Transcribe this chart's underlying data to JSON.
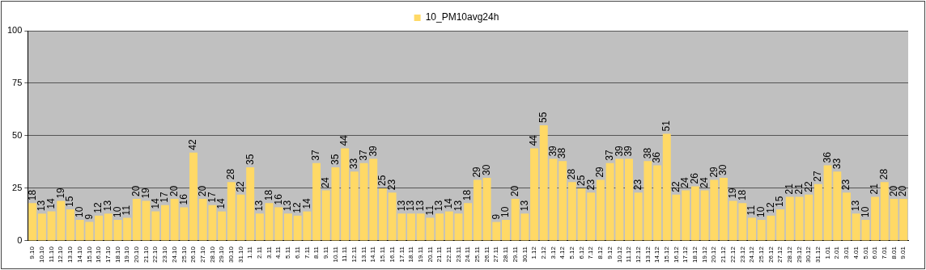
{
  "chart_data": {
    "type": "bar",
    "categories": [
      "9.10",
      "10.10",
      "11.10",
      "12.10",
      "13.10",
      "14.10",
      "15.10",
      "16.10",
      "17.10",
      "18.10",
      "19.10",
      "20.10",
      "21.10",
      "22.10",
      "23.10",
      "24.10",
      "25.10",
      "26.10",
      "27.10",
      "28.10",
      "29.10",
      "30.10",
      "31.10",
      "1.11",
      "2.11",
      "3.11",
      "4.11",
      "5.11",
      "6.11",
      "7.11",
      "8.11",
      "9.11",
      "10.11",
      "11.11",
      "12.11",
      "13.11",
      "14.11",
      "15.11",
      "16.11",
      "17.11",
      "18.11",
      "19.11",
      "20.11",
      "21.11",
      "22.11",
      "23.11",
      "24.11",
      "25.11",
      "26.11",
      "27.11",
      "28.11",
      "29.11",
      "30.11",
      "1.12",
      "2.12",
      "3.12",
      "4.12",
      "5.12",
      "6.12",
      "7.12",
      "8.12",
      "9.12",
      "10.12",
      "11.12",
      "12.12",
      "13.12",
      "14.12",
      "15.12",
      "16.12",
      "17.12",
      "18.12",
      "19.12",
      "20.12",
      "21.12",
      "22.12",
      "23.12",
      "24.12",
      "25.12",
      "26.12",
      "27.12",
      "28.12",
      "29.12",
      "30.12",
      "31.12",
      "1.01",
      "2.01",
      "3.01",
      "4.01",
      "5.01",
      "6.01",
      "7.01",
      "8.01",
      "9.01"
    ],
    "series": [
      {
        "name": "10_PM10avg24h",
        "color": "#ffd966",
        "values": [
          18,
          13,
          14,
          19,
          15,
          10,
          9,
          12,
          13,
          10,
          11,
          20,
          19,
          14,
          17,
          20,
          16,
          42,
          20,
          17,
          14,
          28,
          22,
          35,
          13,
          18,
          16,
          13,
          12,
          14,
          37,
          24,
          35,
          44,
          33,
          37,
          39,
          25,
          23,
          13,
          13,
          13,
          11,
          13,
          14,
          13,
          18,
          29,
          30,
          9,
          10,
          20,
          13,
          44,
          55,
          39,
          38,
          28,
          25,
          23,
          29,
          37,
          39,
          39,
          23,
          38,
          36,
          51,
          22,
          24,
          26,
          24,
          29,
          30,
          19,
          18,
          11,
          10,
          12,
          15,
          21,
          21,
          22,
          27,
          36,
          33,
          23,
          13,
          10,
          21,
          28,
          20,
          20
        ]
      }
    ],
    "ylim": [
      0,
      100
    ],
    "yticks": [
      0,
      25,
      50,
      75,
      100
    ],
    "grid": "y",
    "legend": "top",
    "data_labels": true
  }
}
